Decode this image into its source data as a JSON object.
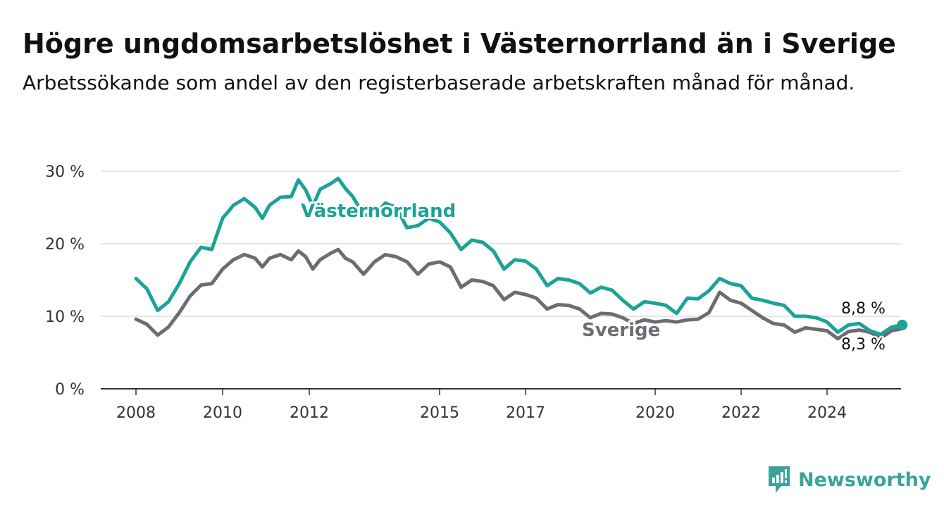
{
  "title": "Högre ungdomsarbetslöshet i Västernorrland än i Sverige",
  "subtitle": "Arbetssökande som andel av den registerbaserade arbetskraften månad för månad.",
  "brand": {
    "name": "Newsworthy",
    "icon": "newsworthy-bar-chart-icon"
  },
  "colors": {
    "vasternorrland": "#1aa396",
    "sverige": "#6e6b73",
    "grid": "#dddddd",
    "axis": "#333333"
  },
  "chart_data": {
    "type": "line",
    "x_ticks": [
      "2008",
      "2010",
      "2012",
      "2015",
      "2017",
      "2020",
      "2022",
      "2024"
    ],
    "y_ticks": [
      "0 %",
      "10 %",
      "20 %",
      "30 %"
    ],
    "ylim": [
      0,
      30
    ],
    "grid": true,
    "series": [
      {
        "name": "Västernorrland",
        "end_label": "8,8 %",
        "points": [
          [
            "2008-01",
            15.2
          ],
          [
            "2008-04",
            13.8
          ],
          [
            "2008-07",
            10.8
          ],
          [
            "2008-10",
            12.0
          ],
          [
            "2009-01",
            14.5
          ],
          [
            "2009-04",
            17.5
          ],
          [
            "2009-07",
            19.5
          ],
          [
            "2009-10",
            19.2
          ],
          [
            "2010-01",
            23.5
          ],
          [
            "2010-04",
            25.3
          ],
          [
            "2010-07",
            26.2
          ],
          [
            "2010-10",
            25.0
          ],
          [
            "2010-12",
            23.5
          ],
          [
            "2011-02",
            25.3
          ],
          [
            "2011-05",
            26.4
          ],
          [
            "2011-08",
            26.5
          ],
          [
            "2011-10",
            28.8
          ],
          [
            "2011-12",
            27.4
          ],
          [
            "2012-02",
            25.2
          ],
          [
            "2012-04",
            27.5
          ],
          [
            "2012-07",
            28.3
          ],
          [
            "2012-09",
            29.0
          ],
          [
            "2012-11",
            27.6
          ],
          [
            "2013-01",
            26.5
          ],
          [
            "2013-04",
            24.0
          ],
          [
            "2013-07",
            23.8
          ],
          [
            "2013-10",
            25.6
          ],
          [
            "2014-01",
            25.0
          ],
          [
            "2014-04",
            22.2
          ],
          [
            "2014-07",
            22.5
          ],
          [
            "2014-10",
            23.5
          ],
          [
            "2015-01",
            23.0
          ],
          [
            "2015-04",
            21.5
          ],
          [
            "2015-07",
            19.2
          ],
          [
            "2015-10",
            20.5
          ],
          [
            "2016-01",
            20.2
          ],
          [
            "2016-04",
            19.0
          ],
          [
            "2016-07",
            16.5
          ],
          [
            "2016-10",
            17.8
          ],
          [
            "2017-01",
            17.6
          ],
          [
            "2017-04",
            16.5
          ],
          [
            "2017-07",
            14.2
          ],
          [
            "2017-10",
            15.2
          ],
          [
            "2018-01",
            15.0
          ],
          [
            "2018-04",
            14.5
          ],
          [
            "2018-07",
            13.2
          ],
          [
            "2018-10",
            14.0
          ],
          [
            "2019-01",
            13.6
          ],
          [
            "2019-04",
            12.2
          ],
          [
            "2019-07",
            11.0
          ],
          [
            "2019-10",
            12.0
          ],
          [
            "2020-01",
            11.8
          ],
          [
            "2020-04",
            11.5
          ],
          [
            "2020-07",
            10.4
          ],
          [
            "2020-10",
            12.5
          ],
          [
            "2021-01",
            12.4
          ],
          [
            "2021-04",
            13.5
          ],
          [
            "2021-07",
            15.2
          ],
          [
            "2021-10",
            14.5
          ],
          [
            "2022-01",
            14.2
          ],
          [
            "2022-04",
            12.5
          ],
          [
            "2022-07",
            12.2
          ],
          [
            "2022-10",
            11.8
          ],
          [
            "2023-01",
            11.5
          ],
          [
            "2023-04",
            10.0
          ],
          [
            "2023-07",
            10.0
          ],
          [
            "2023-10",
            9.8
          ],
          [
            "2024-01",
            9.2
          ],
          [
            "2024-04",
            7.8
          ],
          [
            "2024-07",
            8.8
          ],
          [
            "2024-10",
            9.0
          ],
          [
            "2025-01",
            8.0
          ],
          [
            "2025-04",
            7.5
          ],
          [
            "2025-07",
            8.5
          ],
          [
            "2025-10",
            8.8
          ]
        ]
      },
      {
        "name": "Sverige",
        "end_label": "8,3 %",
        "points": [
          [
            "2008-01",
            9.6
          ],
          [
            "2008-04",
            8.9
          ],
          [
            "2008-07",
            7.4
          ],
          [
            "2008-10",
            8.5
          ],
          [
            "2009-01",
            10.5
          ],
          [
            "2009-04",
            12.8
          ],
          [
            "2009-07",
            14.3
          ],
          [
            "2009-10",
            14.5
          ],
          [
            "2010-01",
            16.5
          ],
          [
            "2010-04",
            17.8
          ],
          [
            "2010-07",
            18.5
          ],
          [
            "2010-10",
            18.0
          ],
          [
            "2010-12",
            16.8
          ],
          [
            "2011-02",
            18.0
          ],
          [
            "2011-05",
            18.5
          ],
          [
            "2011-08",
            17.8
          ],
          [
            "2011-10",
            19.0
          ],
          [
            "2011-12",
            18.2
          ],
          [
            "2012-02",
            16.5
          ],
          [
            "2012-04",
            17.8
          ],
          [
            "2012-07",
            18.7
          ],
          [
            "2012-09",
            19.2
          ],
          [
            "2012-11",
            18.0
          ],
          [
            "2013-01",
            17.5
          ],
          [
            "2013-04",
            15.8
          ],
          [
            "2013-07",
            17.5
          ],
          [
            "2013-10",
            18.5
          ],
          [
            "2014-01",
            18.2
          ],
          [
            "2014-04",
            17.5
          ],
          [
            "2014-07",
            15.8
          ],
          [
            "2014-10",
            17.2
          ],
          [
            "2015-01",
            17.5
          ],
          [
            "2015-04",
            16.8
          ],
          [
            "2015-07",
            14.0
          ],
          [
            "2015-10",
            15.0
          ],
          [
            "2016-01",
            14.8
          ],
          [
            "2016-04",
            14.2
          ],
          [
            "2016-07",
            12.3
          ],
          [
            "2016-10",
            13.3
          ],
          [
            "2017-01",
            13.0
          ],
          [
            "2017-04",
            12.5
          ],
          [
            "2017-07",
            11.0
          ],
          [
            "2017-10",
            11.6
          ],
          [
            "2018-01",
            11.5
          ],
          [
            "2018-04",
            11.0
          ],
          [
            "2018-07",
            9.8
          ],
          [
            "2018-10",
            10.4
          ],
          [
            "2019-01",
            10.3
          ],
          [
            "2019-04",
            9.8
          ],
          [
            "2019-07",
            9.0
          ],
          [
            "2019-10",
            9.5
          ],
          [
            "2020-01",
            9.2
          ],
          [
            "2020-04",
            9.4
          ],
          [
            "2020-07",
            9.2
          ],
          [
            "2020-10",
            9.5
          ],
          [
            "2021-01",
            9.6
          ],
          [
            "2021-04",
            10.5
          ],
          [
            "2021-07",
            13.3
          ],
          [
            "2021-10",
            12.2
          ],
          [
            "2022-01",
            11.8
          ],
          [
            "2022-04",
            10.8
          ],
          [
            "2022-07",
            9.8
          ],
          [
            "2022-10",
            9.0
          ],
          [
            "2023-01",
            8.8
          ],
          [
            "2023-04",
            7.8
          ],
          [
            "2023-07",
            8.4
          ],
          [
            "2023-10",
            8.2
          ],
          [
            "2024-01",
            8.0
          ],
          [
            "2024-04",
            6.9
          ],
          [
            "2024-07",
            7.9
          ],
          [
            "2024-10",
            8.1
          ],
          [
            "2025-01",
            7.8
          ],
          [
            "2025-04",
            7.0
          ],
          [
            "2025-07",
            8.0
          ],
          [
            "2025-10",
            8.3
          ]
        ]
      }
    ]
  }
}
